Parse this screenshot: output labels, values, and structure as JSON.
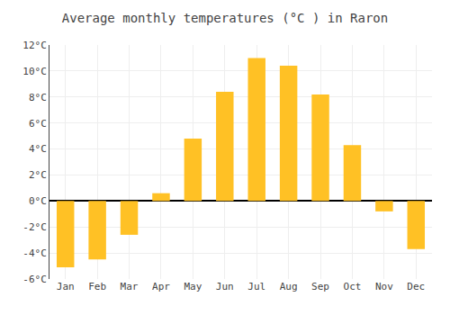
{
  "chart_data": {
    "type": "bar",
    "title": "Average monthly temperatures (°C ) in Raron",
    "categories": [
      "Jan",
      "Feb",
      "Mar",
      "Apr",
      "May",
      "Jun",
      "Jul",
      "Aug",
      "Sep",
      "Oct",
      "Nov",
      "Dec"
    ],
    "values": [
      -5.1,
      -4.5,
      -2.6,
      0.6,
      4.8,
      8.4,
      11.0,
      10.4,
      8.2,
      4.3,
      -0.8,
      -3.7
    ],
    "color": "#FFC125",
    "ylim": [
      -6,
      12
    ],
    "yticks": [
      {
        "value": -6,
        "label": "-6°C"
      },
      {
        "value": -4,
        "label": "-4°C"
      },
      {
        "value": -2,
        "label": "-2°C"
      },
      {
        "value": 0,
        "label": "0°C"
      },
      {
        "value": 2,
        "label": "2°C"
      },
      {
        "value": 4,
        "label": "4°C"
      },
      {
        "value": 6,
        "label": "6°C"
      },
      {
        "value": 8,
        "label": "8°C"
      },
      {
        "value": 10,
        "label": "10°C"
      },
      {
        "value": 12,
        "label": "12°C"
      }
    ],
    "grid": true
  }
}
